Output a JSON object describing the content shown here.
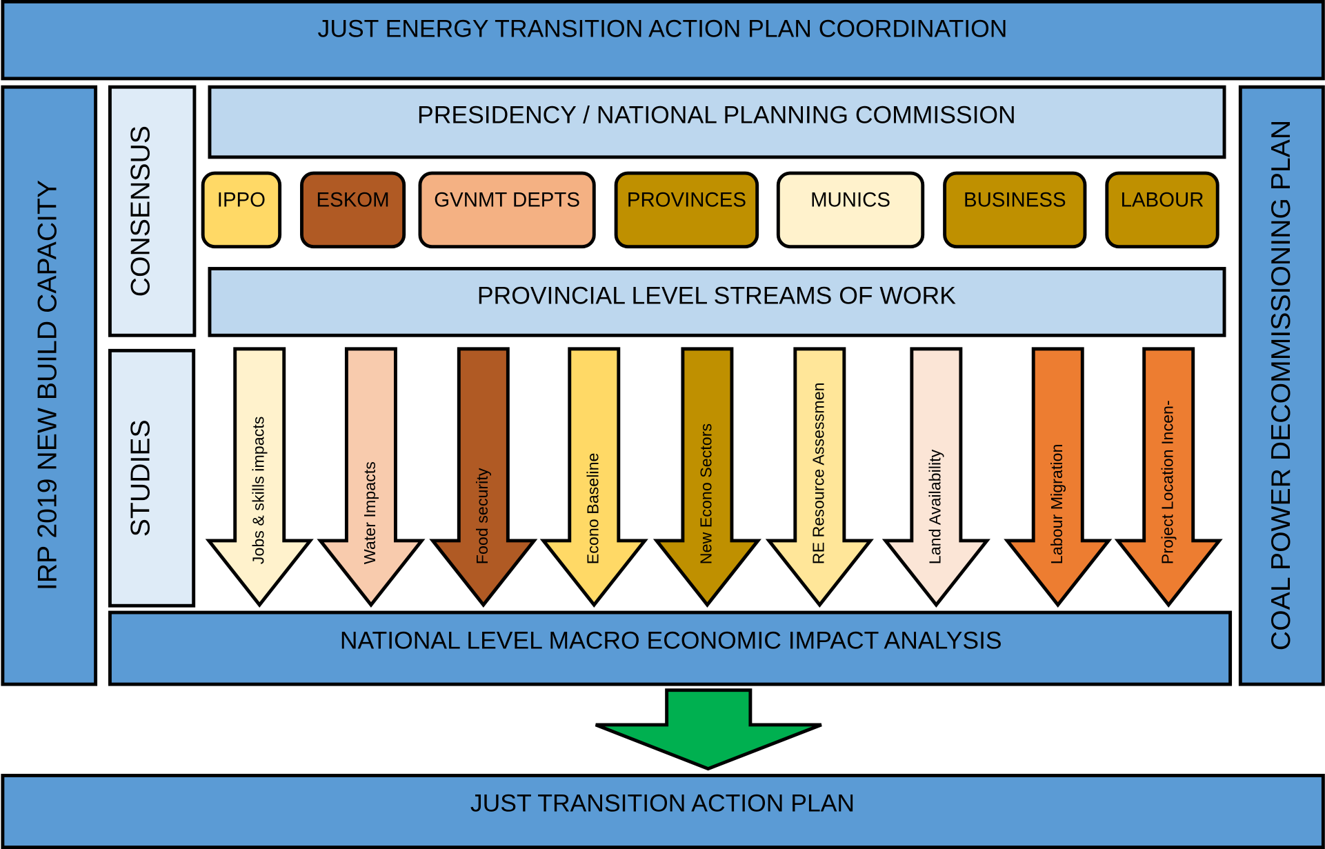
{
  "header": {
    "title": "JUST ENERGY TRANSITION ACTION PLAN COORDINATION"
  },
  "left_panel": "IRP 2019 NEW BUILD CAPACITY",
  "right_panel": "COAL POWER DECOMMISSIONING PLAN",
  "consensus": {
    "label": "CONSENSUS",
    "top": "PRESIDENCY / NATIONAL PLANNING COMMISSION",
    "stakeholders": [
      "IPPO",
      "ESKOM",
      "GVNMT DEPTS",
      "PROVINCES",
      "MUNICS",
      "BUSINESS",
      "LABOUR"
    ],
    "bottom": "PROVINCIAL LEVEL STREAMS OF WORK"
  },
  "studies": {
    "label": "STUDIES",
    "items": [
      "Jobs  & skills impacts",
      "Water Impacts",
      "Food security",
      "Econo Baseline",
      "New Econo Sectors",
      "RE Resource Assessmen",
      "Land Availability",
      "Labour Migration",
      "Project Location Incen-"
    ]
  },
  "analysis": "NATIONAL LEVEL MACRO ECONOMIC IMPACT ANALYSIS",
  "footer": {
    "title": "JUST TRANSITION ACTION PLAN"
  }
}
